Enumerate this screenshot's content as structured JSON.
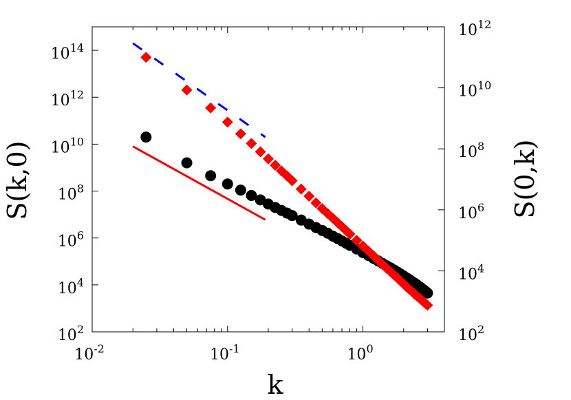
{
  "chart_data": {
    "type": "scatter",
    "title": "",
    "xlabel": "k",
    "ylabel_left": "S(k,0)",
    "ylabel_right": "S(0,k)",
    "x_scale": "log",
    "y_scale": "log",
    "xlim": [
      0.01,
      4.0
    ],
    "ylim_left": [
      100,
      1000000000000000.0
    ],
    "ylim_right": [
      100,
      1000000000000.0
    ],
    "grid": false,
    "legend": "none",
    "x_ticks": [
      {
        "base": "10",
        "exp": "-2",
        "value": 0.01
      },
      {
        "base": "10",
        "exp": "-1",
        "value": 0.1
      },
      {
        "base": "10",
        "exp": "0",
        "value": 1
      }
    ],
    "y_ticks_left": [
      {
        "base": "10",
        "exp": "2",
        "value": 100.0
      },
      {
        "base": "10",
        "exp": "4",
        "value": 10000.0
      },
      {
        "base": "10",
        "exp": "6",
        "value": 1000000.0
      },
      {
        "base": "10",
        "exp": "8",
        "value": 100000000.0
      },
      {
        "base": "10",
        "exp": "10",
        "value": 10000000000.0
      },
      {
        "base": "10",
        "exp": "12",
        "value": 1000000000000.0
      },
      {
        "base": "10",
        "exp": "14",
        "value": 100000000000000.0
      }
    ],
    "y_ticks_right": [
      {
        "base": "10",
        "exp": "2",
        "value": 100.0
      },
      {
        "base": "10",
        "exp": "4",
        "value": 10000.0
      },
      {
        "base": "10",
        "exp": "6",
        "value": 1000000.0
      },
      {
        "base": "10",
        "exp": "8",
        "value": 100000000.0
      },
      {
        "base": "10",
        "exp": "10",
        "value": 10000000000.0
      },
      {
        "base": "10",
        "exp": "12",
        "value": 1000000000000.0
      }
    ],
    "series": [
      {
        "axis": "left",
        "marker": "circle",
        "color": "#000000",
        "x": [
          0.025,
          0.05,
          0.075,
          0.1,
          0.125,
          0.15,
          0.175,
          0.2,
          0.225,
          0.25,
          0.275,
          0.3,
          0.35,
          0.4,
          0.45,
          0.5,
          0.55,
          0.6,
          0.65,
          0.7,
          0.75,
          0.8,
          0.9,
          1.0,
          1.1,
          1.2,
          1.3,
          1.4,
          1.5,
          1.6,
          1.7,
          1.8,
          1.9,
          2.0,
          2.1,
          2.2,
          2.3,
          2.4,
          2.5,
          2.6,
          2.7,
          2.8,
          2.9,
          3.0
        ],
        "y": [
          20000000000.0,
          1600000000.0,
          450000000.0,
          200000000.0,
          110000000.0,
          65000000.0,
          42000000.0,
          28000000.0,
          20000000.0,
          15000000.0,
          11500000.0,
          9000000.0,
          5800000.0,
          3900000.0,
          2800000.0,
          2100000.0,
          1600000.0,
          1200000.0,
          950000.0,
          750000.0,
          600000.0,
          490000.0,
          340000.0,
          240000.0,
          180000.0,
          135000.0,
          105000.0,
          82000.0,
          65000.0,
          53000.0,
          43000.0,
          35000.0,
          29000.0,
          24000.0,
          20000.0,
          17000.0,
          14000.0,
          12000.0,
          10200.0,
          8600.0,
          7300.0,
          6200.0,
          5300.0,
          4500.0
        ]
      },
      {
        "axis": "right",
        "marker": "diamond",
        "color": "#ff0000",
        "x": [
          0.025,
          0.05,
          0.075,
          0.1,
          0.125,
          0.15,
          0.175,
          0.2,
          0.225,
          0.25,
          0.275,
          0.3,
          0.35,
          0.4,
          0.45,
          0.5,
          0.55,
          0.6,
          0.65,
          0.7,
          0.75,
          0.8,
          0.9,
          1.0,
          1.1,
          1.2,
          1.3,
          1.4,
          1.5,
          1.6,
          1.7,
          1.8,
          1.9,
          2.0,
          2.1,
          2.2,
          2.3,
          2.4,
          2.5,
          2.6,
          2.7,
          2.8,
          2.9,
          3.0
        ],
        "y": [
          100000000000.0,
          8500000000.0,
          2200000000.0,
          750000000.0,
          310000000.0,
          150000000.0,
          80000000.0,
          47000000.0,
          29000000.0,
          19000000.0,
          13000000.0,
          9000000.0,
          4800000.0,
          2800000.0,
          1700000.0,
          1100000.0,
          750000.0,
          530000.0,
          380000.0,
          280000.0,
          210000.0,
          160000.0,
          100000.0,
          65000.0,
          44000.0,
          31000.0,
          22000.0,
          16000.0,
          12000.0,
          9300.0,
          7300.0,
          5800.0,
          4600.0,
          3700.0,
          3000.0,
          2500.0,
          2100.0,
          1750.0,
          1500.0,
          1300.0,
          1120.0,
          970.0,
          850.0,
          750.0
        ]
      }
    ],
    "reference_lines": [
      {
        "axis": "left",
        "style": "solid",
        "color": "#ff0000",
        "x": [
          0.02,
          0.19
        ],
        "y": [
          8000000000.0,
          6000000.0
        ]
      },
      {
        "axis": "left",
        "style": "dashed",
        "color": "#0000ff",
        "x": [
          0.02,
          0.19
        ],
        "y": [
          200000000000000.0,
          20000000000.0
        ]
      }
    ]
  }
}
